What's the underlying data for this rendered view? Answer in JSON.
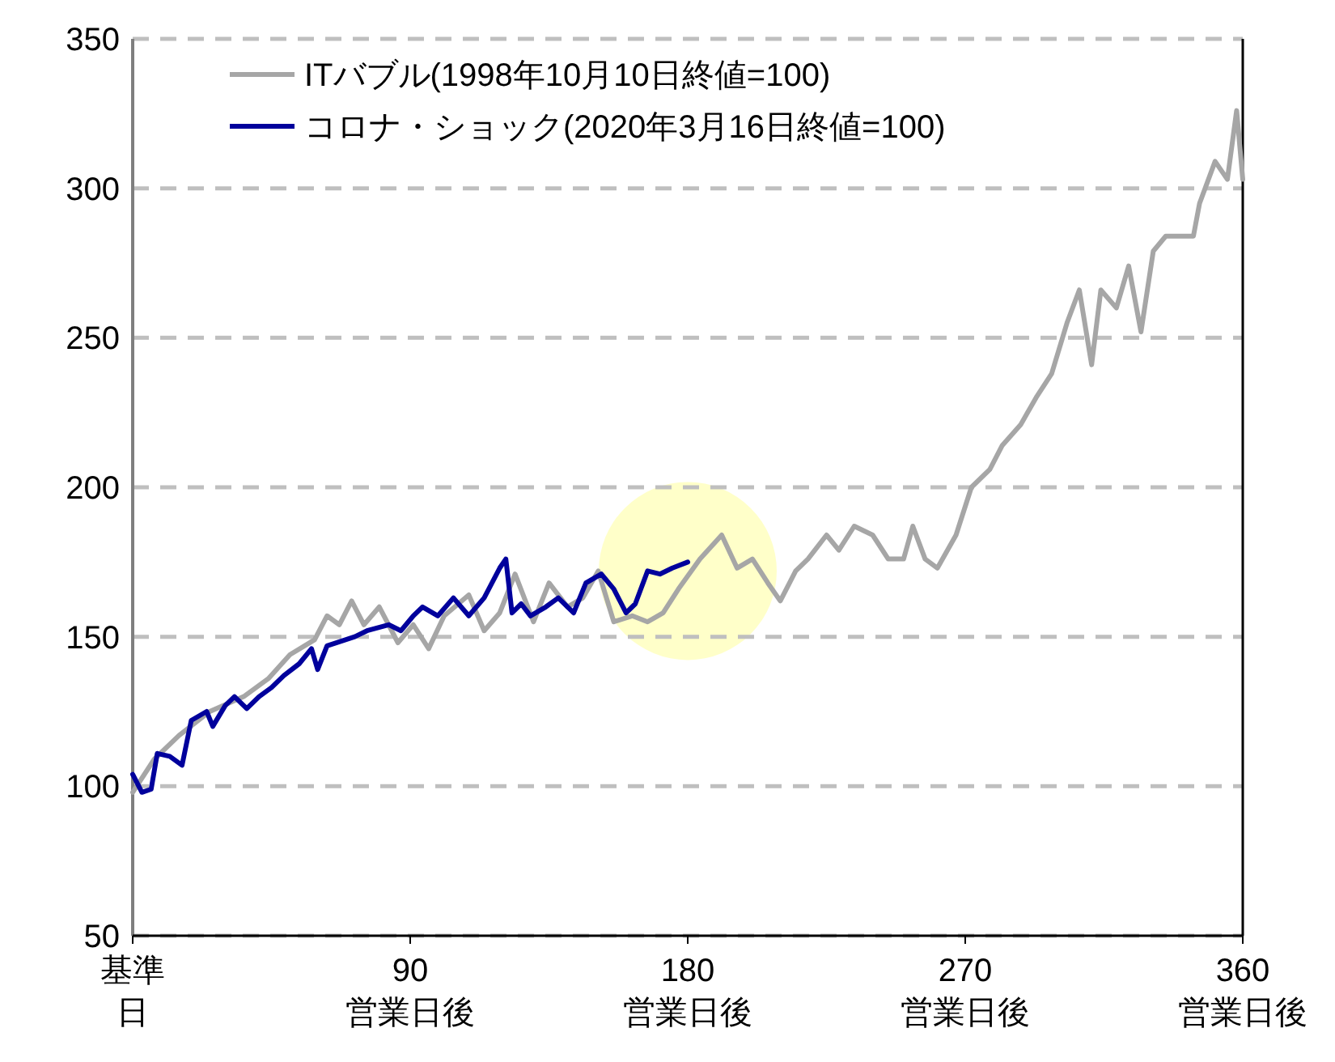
{
  "chart_data": {
    "type": "line",
    "xlim": [
      0,
      360
    ],
    "ylim": [
      50,
      350
    ],
    "xticks": [
      {
        "value": 0,
        "label": "基準日"
      },
      {
        "value": 90,
        "label": "90営業日後"
      },
      {
        "value": 180,
        "label": "180営業日後"
      },
      {
        "value": 270,
        "label": "270営業日後"
      },
      {
        "value": 360,
        "label": "360営業日後"
      }
    ],
    "yticks": [
      50,
      100,
      150,
      200,
      250,
      300,
      350
    ],
    "grid": "y",
    "legend": "top left",
    "line_style": "solid",
    "series": [
      {
        "name": "ITバブル(1998年10月10日終値=100)",
        "color": "#a6a6a6",
        "x": [
          0,
          7,
          15,
          25,
          36,
          44,
          51,
          59,
          63,
          67,
          71,
          75,
          80,
          86,
          91,
          96,
          101,
          109,
          114,
          119,
          124,
          130,
          135,
          141,
          146,
          151,
          156,
          162,
          167,
          172,
          177,
          184,
          191,
          196,
          201,
          206,
          210,
          215,
          219,
          225,
          229,
          234,
          240,
          245,
          250,
          253,
          257,
          261,
          267,
          272,
          278,
          282,
          288,
          293,
          298,
          303,
          307,
          311,
          314,
          319,
          323,
          327,
          331,
          335,
          344,
          346,
          351,
          355,
          358,
          360
        ],
        "values": [
          98,
          109,
          117,
          125,
          130,
          136,
          144,
          149,
          157,
          154,
          162,
          154,
          160,
          148,
          154,
          146,
          157,
          164,
          152,
          158,
          171,
          155,
          168,
          160,
          163,
          172,
          155,
          157,
          155,
          158,
          166,
          176,
          184,
          173,
          176,
          168,
          162,
          172,
          176,
          184,
          179,
          187,
          184,
          176,
          176,
          187,
          176,
          173,
          184,
          200,
          206,
          214,
          221,
          230,
          238,
          255,
          266,
          241,
          266,
          260,
          274,
          252,
          279,
          284,
          284,
          295,
          309,
          303,
          326,
          303
        ]
      },
      {
        "name": "コロナ・ショック(2020年3月16日終値=100)",
        "color": "#00009c",
        "x": [
          0,
          3,
          6,
          8,
          12,
          16,
          19,
          24,
          26,
          30,
          33,
          37,
          41,
          45,
          49,
          54,
          58,
          60,
          63,
          69,
          72,
          76,
          83,
          87,
          91,
          94,
          99,
          104,
          109,
          114,
          119,
          121,
          123,
          126,
          129,
          134,
          138,
          143,
          147,
          152,
          156,
          160,
          163,
          167,
          171,
          175,
          180
        ],
        "values": [
          104,
          98,
          99,
          111,
          110,
          107,
          122,
          125,
          120,
          127,
          130,
          126,
          130,
          133,
          137,
          141,
          146,
          139,
          147,
          149,
          150,
          152,
          154,
          152,
          157,
          160,
          157,
          163,
          157,
          163,
          173,
          176,
          158,
          161,
          157,
          160,
          163,
          158,
          168,
          171,
          166,
          158,
          161,
          172,
          171,
          173,
          175
        ]
      }
    ]
  }
}
